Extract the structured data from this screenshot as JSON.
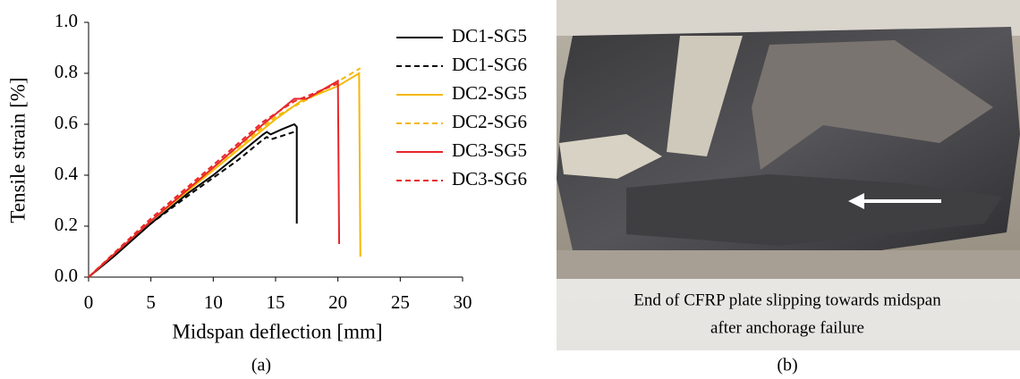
{
  "chart_data": {
    "type": "line",
    "xlabel": "Midspan deflection [mm]",
    "ylabel": "Tensile strain [%]",
    "xlim": [
      0,
      30
    ],
    "xticks": [
      0,
      5,
      10,
      15,
      20,
      25,
      30
    ],
    "ylim": [
      0,
      1
    ],
    "yticks": [
      {
        "value": 0,
        "label": "0.0"
      },
      0.2,
      0.4,
      0.6,
      0.8,
      {
        "value": 1,
        "label": "1.0"
      }
    ],
    "legend": "right",
    "series": [
      {
        "name": "DC1-SG5",
        "color": "#000000",
        "linestyle": "solid",
        "x": [
          0,
          2,
          5,
          8,
          10,
          12,
          14,
          14.3,
          14.6,
          15.5,
          16.5,
          16.7,
          16.7
        ],
        "values": [
          0,
          0.08,
          0.21,
          0.33,
          0.4,
          0.48,
          0.56,
          0.57,
          0.56,
          0.58,
          0.6,
          0.59,
          0.21
        ]
      },
      {
        "name": "DC1-SG6",
        "color": "#000000",
        "linestyle": "dashed",
        "x": [
          0,
          5,
          8,
          10,
          12,
          14,
          14.3,
          14.6,
          16.5,
          16.7
        ],
        "values": [
          0,
          0.21,
          0.32,
          0.39,
          0.46,
          0.54,
          0.55,
          0.54,
          0.57,
          0.57
        ]
      },
      {
        "name": "DC2-SG5",
        "color": "#f5b800",
        "linestyle": "solid",
        "x": [
          0,
          5,
          10,
          15,
          17,
          20,
          21.7,
          21.8
        ],
        "values": [
          0,
          0.22,
          0.42,
          0.62,
          0.69,
          0.75,
          0.8,
          0.08
        ]
      },
      {
        "name": "DC2-SG6",
        "color": "#f5b800",
        "linestyle": "dashed",
        "x": [
          0,
          5,
          10,
          15,
          18,
          21.8
        ],
        "values": [
          0,
          0.23,
          0.43,
          0.63,
          0.71,
          0.82
        ]
      },
      {
        "name": "DC3-SG5",
        "color": "#e8262a",
        "linestyle": "solid",
        "x": [
          0,
          5,
          10,
          14,
          16.5,
          17.5,
          20,
          20.1
        ],
        "values": [
          0,
          0.22,
          0.43,
          0.6,
          0.7,
          0.7,
          0.77,
          0.13
        ]
      },
      {
        "name": "DC3-SG6",
        "color": "#e8262a",
        "linestyle": "dashed",
        "x": [
          0,
          5,
          10,
          14,
          16.5,
          19,
          20
        ],
        "values": [
          0,
          0.23,
          0.44,
          0.61,
          0.69,
          0.74,
          0.76
        ]
      }
    ]
  },
  "panel_labels": [
    "(a)",
    "(b)"
  ],
  "photo": {
    "caption": [
      "End of CFRP plate slipping towards midspan",
      "after anchorage failure"
    ]
  }
}
